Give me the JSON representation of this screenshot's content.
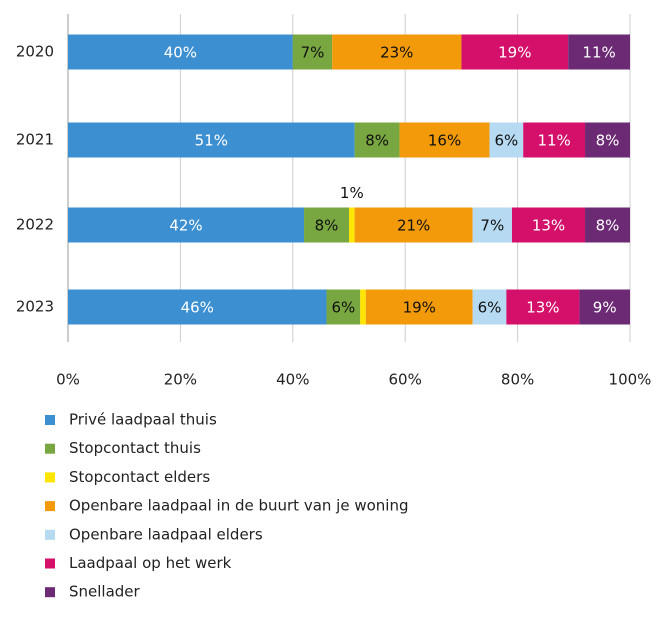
{
  "chart_data": {
    "type": "stacked-bar-horizontal",
    "categories": [
      "2020",
      "2021",
      "2022",
      "2023"
    ],
    "series": [
      {
        "name": "Privé laadpaal thuis",
        "color": "#3c8fd0",
        "values": [
          40,
          51,
          42,
          46
        ],
        "value_labels": [
          "40%",
          "51%",
          "42%",
          "46%"
        ]
      },
      {
        "name": "Stopcontact thuis",
        "color": "#78a640",
        "values": [
          7,
          8,
          8,
          6
        ],
        "value_labels": [
          "7%",
          "8%",
          "8%",
          "6%"
        ]
      },
      {
        "name": "Stopcontact elders",
        "color": "#ffe500",
        "values": [
          0,
          0,
          1,
          1
        ],
        "value_labels": [
          null,
          null,
          "1%",
          null
        ]
      },
      {
        "name": "Openbare laadpaal in de buurt van je woning",
        "color": "#f39a0b",
        "values": [
          23,
          16,
          21,
          19
        ],
        "value_labels": [
          "23%",
          "16%",
          "21%",
          "19%"
        ]
      },
      {
        "name": "Openbare laadpaal elders",
        "color": "#b6daf1",
        "values": [
          0,
          6,
          7,
          6
        ],
        "value_labels": [
          null,
          "6%",
          "7%",
          "6%"
        ]
      },
      {
        "name": "Laadpaal op het werk",
        "color": "#d4106a",
        "values": [
          19,
          11,
          13,
          13
        ],
        "value_labels": [
          "19%",
          "11%",
          "13%",
          "13%"
        ]
      },
      {
        "name": "Snellader",
        "color": "#6b2a73",
        "values": [
          11,
          8,
          8,
          9
        ],
        "value_labels": [
          "11%",
          "8%",
          "8%",
          "9%"
        ]
      }
    ],
    "xlim": [
      0,
      100
    ],
    "xticks": [
      {
        "value": 0,
        "label": "0%"
      },
      {
        "value": 20,
        "label": "20%"
      },
      {
        "value": 40,
        "label": "40%"
      },
      {
        "value": 60,
        "label": "60%"
      },
      {
        "value": 80,
        "label": "80%"
      },
      {
        "value": 100,
        "label": "100%"
      }
    ],
    "grid": true,
    "legend": "bottom"
  }
}
